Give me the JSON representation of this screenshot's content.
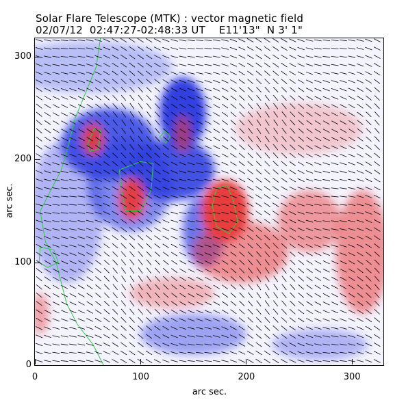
{
  "header": {
    "title_line1": "Solar Flare Telescope (MTK) : vector magnetic field",
    "title_line2": "02/07/12  02:47:27-02:48:33 UT    E11'13\"  N 3' 1\""
  },
  "colors": {
    "positive_polarity": "#e83c3c",
    "negative_polarity": "#3040e0",
    "neutral_background": "#f4f4ff",
    "contour": "#2ecc40",
    "vectors": "#000000"
  },
  "chart_data": {
    "type": "heatmap",
    "title": "Solar Flare Telescope (MTK) : vector magnetic field",
    "subtitle": "02/07/12  02:47:27-02:48:33 UT    E11'13\"  N 3' 1\"",
    "xlabel": "arc sec.",
    "ylabel": "arc sec.",
    "xlim": [
      0,
      330
    ],
    "ylim": [
      0,
      318
    ],
    "xticks": [
      0,
      100,
      200,
      300
    ],
    "yticks": [
      0,
      100,
      200,
      300
    ],
    "xtick_labels": [
      "0",
      "100",
      "200",
      "300"
    ],
    "ytick_labels": [
      "0",
      "100",
      "200",
      "300"
    ],
    "regions": [
      {
        "polarity": "negative",
        "x": 140,
        "y": 245,
        "rx": 22,
        "ry": 35,
        "strength": 1.0
      },
      {
        "polarity": "negative",
        "x": 70,
        "y": 215,
        "rx": 45,
        "ry": 35,
        "strength": 0.85
      },
      {
        "polarity": "negative",
        "x": 130,
        "y": 190,
        "rx": 40,
        "ry": 30,
        "strength": 0.9
      },
      {
        "polarity": "negative",
        "x": 90,
        "y": 175,
        "rx": 40,
        "ry": 45,
        "strength": 0.6
      },
      {
        "polarity": "negative",
        "x": 30,
        "y": 150,
        "rx": 35,
        "ry": 70,
        "strength": 0.35
      },
      {
        "polarity": "negative",
        "x": 160,
        "y": 130,
        "rx": 20,
        "ry": 35,
        "strength": 0.7
      },
      {
        "polarity": "negative",
        "x": 150,
        "y": 30,
        "rx": 50,
        "ry": 20,
        "strength": 0.45
      },
      {
        "polarity": "negative",
        "x": 270,
        "y": 20,
        "rx": 45,
        "ry": 15,
        "strength": 0.35
      },
      {
        "polarity": "negative",
        "x": 50,
        "y": 290,
        "rx": 80,
        "ry": 25,
        "strength": 0.3
      },
      {
        "polarity": "positive",
        "x": 180,
        "y": 150,
        "rx": 22,
        "ry": 30,
        "strength": 1.0
      },
      {
        "polarity": "positive",
        "x": 92,
        "y": 162,
        "rx": 12,
        "ry": 20,
        "strength": 0.95
      },
      {
        "polarity": "positive",
        "x": 55,
        "y": 220,
        "rx": 10,
        "ry": 15,
        "strength": 0.9
      },
      {
        "polarity": "positive",
        "x": 140,
        "y": 225,
        "rx": 8,
        "ry": 18,
        "strength": 0.6
      },
      {
        "polarity": "positive",
        "x": 195,
        "y": 110,
        "rx": 45,
        "ry": 30,
        "strength": 0.55
      },
      {
        "polarity": "positive",
        "x": 260,
        "y": 140,
        "rx": 30,
        "ry": 30,
        "strength": 0.5
      },
      {
        "polarity": "positive",
        "x": 310,
        "y": 110,
        "rx": 25,
        "ry": 60,
        "strength": 0.55
      },
      {
        "polarity": "positive",
        "x": 250,
        "y": 230,
        "rx": 60,
        "ry": 25,
        "strength": 0.25
      },
      {
        "polarity": "positive",
        "x": 130,
        "y": 70,
        "rx": 40,
        "ry": 15,
        "strength": 0.35
      },
      {
        "polarity": "positive",
        "x": 5,
        "y": 50,
        "rx": 8,
        "ry": 20,
        "strength": 0.45
      }
    ],
    "contours": [
      {
        "points": [
          [
            62,
            318
          ],
          [
            58,
            290
          ],
          [
            48,
            265
          ],
          [
            38,
            240
          ],
          [
            32,
            215
          ],
          [
            25,
            190
          ],
          [
            15,
            170
          ],
          [
            5,
            150
          ],
          [
            10,
            120
          ],
          [
            20,
            100
          ],
          [
            25,
            80
          ],
          [
            30,
            60
          ],
          [
            40,
            40
          ],
          [
            55,
            20
          ],
          [
            65,
            0
          ]
        ]
      },
      {
        "points": [
          [
            50,
            215
          ],
          [
            56,
            230
          ],
          [
            62,
            228
          ],
          [
            60,
            210
          ],
          [
            52,
            208
          ],
          [
            50,
            215
          ]
        ]
      },
      {
        "points": [
          [
            80,
            190
          ],
          [
            100,
            198
          ],
          [
            112,
            196
          ],
          [
            110,
            170
          ],
          [
            100,
            150
          ],
          [
            86,
            150
          ],
          [
            82,
            170
          ],
          [
            80,
            190
          ]
        ]
      },
      {
        "points": [
          [
            172,
            172
          ],
          [
            182,
            175
          ],
          [
            188,
            160
          ],
          [
            192,
            140
          ],
          [
            184,
            128
          ],
          [
            172,
            135
          ],
          [
            168,
            155
          ],
          [
            172,
            172
          ]
        ]
      },
      {
        "points": [
          [
            118,
            222
          ],
          [
            124,
            228
          ],
          [
            128,
            222
          ],
          [
            124,
            216
          ],
          [
            118,
            222
          ]
        ]
      },
      {
        "points": [
          [
            5,
            115
          ],
          [
            18,
            112
          ],
          [
            22,
            100
          ],
          [
            12,
            95
          ],
          [
            4,
            100
          ],
          [
            5,
            115
          ]
        ]
      }
    ],
    "vector_field": {
      "grid_spacing": 8,
      "predominant_direction": "upper-left to lower-right",
      "length": 7
    }
  }
}
